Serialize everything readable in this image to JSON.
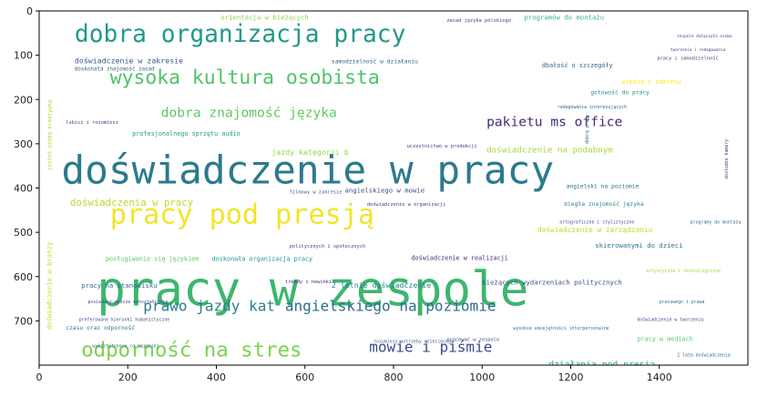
{
  "chart_data": {
    "type": "wordcloud",
    "x_ticks": [
      "0",
      "200",
      "400",
      "600",
      "800",
      "1000",
      "1200",
      "1400"
    ],
    "y_ticks": [
      "0",
      "100",
      "200",
      "300",
      "400",
      "500",
      "600",
      "700"
    ],
    "xlim": [
      0,
      1600
    ],
    "ylim": [
      800,
      0
    ],
    "words": [
      {
        "text": "pracy w zespole",
        "x": 130,
        "y": 665,
        "size": 108,
        "color": "#3cb66e"
      },
      {
        "text": "doświadczenie w pracy",
        "x": 50,
        "y": 390,
        "size": 88,
        "color": "#2c7a8c"
      },
      {
        "text": "pracy pod presją",
        "x": 160,
        "y": 480,
        "size": 62,
        "color": "#f0e52a"
      },
      {
        "text": "dobra organizacja pracy",
        "x": 80,
        "y": 70,
        "size": 54,
        "color": "#22998a"
      },
      {
        "text": "wysoka kultura osobista",
        "x": 160,
        "y": 165,
        "size": 44,
        "color": "#4ec36b"
      },
      {
        "text": "odporność na stres",
        "x": 95,
        "y": 780,
        "size": 46,
        "color": "#7cd250"
      },
      {
        "text": "prawo jazdy kat",
        "x": 235,
        "y": 678,
        "size": 33,
        "color": "#2a7f8e"
      },
      {
        "text": "angielskiego na poziomie",
        "x": 555,
        "y": 678,
        "size": 33,
        "color": "#2d6e8e"
      },
      {
        "text": "mowie i piśmie",
        "x": 745,
        "y": 770,
        "size": 33,
        "color": "#3d4c8a"
      },
      {
        "text": "pakietu ms office",
        "x": 1010,
        "y": 260,
        "size": 30,
        "color": "#482878"
      },
      {
        "text": "dobra znajomość języka",
        "x": 275,
        "y": 240,
        "size": 30,
        "color": "#5ec962"
      },
      {
        "text": "doświadczenia w pracy",
        "x": 70,
        "y": 440,
        "size": 22,
        "color": "#b5de2b"
      },
      {
        "text": "doświadczenie na podobnym",
        "x": 1010,
        "y": 320,
        "size": 19,
        "color": "#a2da37"
      },
      {
        "text": "działania pod presją",
        "x": 1150,
        "y": 805,
        "size": 20,
        "color": "#22a884"
      },
      {
        "text": "prawo jazdy kategorii",
        "x": 220,
        "y": 825,
        "size": 19,
        "color": "#c2df23"
      },
      {
        "text": "jazdy kategorii b",
        "x": 525,
        "y": 325,
        "size": 17,
        "color": "#8fd744"
      },
      {
        "text": "doświadczenie w zakresie",
        "x": 80,
        "y": 118,
        "size": 17,
        "color": "#3b528b"
      },
      {
        "text": "orientacja w bieżących",
        "x": 410,
        "y": 20,
        "size": 15,
        "color": "#86d549"
      },
      {
        "text": "programów do montażu",
        "x": 1095,
        "y": 20,
        "size": 15,
        "color": "#35b779"
      },
      {
        "text": "samodzielność w działaniu",
        "x": 660,
        "y": 118,
        "size": 13,
        "color": "#31688e"
      },
      {
        "text": "profesjonalnego sprzętu audio",
        "x": 210,
        "y": 282,
        "size": 14,
        "color": "#1f9e89"
      },
      {
        "text": "doskonała znajomość zasad",
        "x": 80,
        "y": 135,
        "size": 12,
        "color": "#31688e"
      },
      {
        "text": "angielskiego w mowie",
        "x": 690,
        "y": 410,
        "size": 15,
        "color": "#3e4a89"
      },
      {
        "text": "angielski na poziomie",
        "x": 1190,
        "y": 400,
        "size": 13,
        "color": "#2c728e"
      },
      {
        "text": "doświadczenie w zarządzaniu",
        "x": 1125,
        "y": 500,
        "size": 16,
        "color": "#b8de29"
      },
      {
        "text": "skierowanymi do dzieci",
        "x": 1255,
        "y": 535,
        "size": 15,
        "color": "#2c728e"
      },
      {
        "text": "doświadczenie w realizacji",
        "x": 840,
        "y": 562,
        "size": 14,
        "color": "#472d7b"
      },
      {
        "text": "posługiwanie się językiem",
        "x": 150,
        "y": 565,
        "size": 14,
        "color": "#5ec962"
      },
      {
        "text": "doskonała organizacja pracy",
        "x": 390,
        "y": 565,
        "size": 14,
        "color": "#21918c"
      },
      {
        "text": "bieżących wydarzeniach politycznych",
        "x": 1000,
        "y": 618,
        "size": 15,
        "color": "#3b528b"
      },
      {
        "text": "2 letnie doświadczenie",
        "x": 660,
        "y": 625,
        "size": 17,
        "color": "#26828e"
      },
      {
        "text": "pracy na stanowisku",
        "x": 95,
        "y": 625,
        "size": 15,
        "color": "#31688e"
      },
      {
        "text": "dbałość o szczegóły",
        "x": 1135,
        "y": 128,
        "size": 14,
        "color": "#31688e"
      },
      {
        "text": "wiedza z zakresu",
        "x": 1315,
        "y": 165,
        "size": 14,
        "color": "#fde725"
      },
      {
        "text": "gotowość do pracy",
        "x": 1245,
        "y": 188,
        "size": 13,
        "color": "#21918c"
      },
      {
        "text": "pracy i samodzielność",
        "x": 1395,
        "y": 110,
        "size": 11,
        "color": "#3e4989"
      },
      {
        "text": "biegła znajomość języka",
        "x": 1185,
        "y": 440,
        "size": 13,
        "color": "#238a8d"
      },
      {
        "text": "wiedza na temat",
        "x": 945,
        "y": 825,
        "size": 17,
        "color": "#35b779"
      },
      {
        "text": "dobra znajomość pakietu",
        "x": 610,
        "y": 830,
        "size": 15,
        "color": "#d2e21b"
      },
      {
        "text": "pracy w mediach",
        "x": 1350,
        "y": 745,
        "size": 14,
        "color": "#5ec962"
      },
      {
        "text": "filmowy w zakresie",
        "x": 565,
        "y": 412,
        "size": 11,
        "color": "#355e8d"
      },
      {
        "text": "politycznych i społecznych",
        "x": 565,
        "y": 535,
        "size": 11,
        "color": "#443983"
      },
      {
        "text": "trendy i nowinki",
        "x": 555,
        "y": 615,
        "size": 11,
        "color": "#482475"
      },
      {
        "text": "czasu oraz odporność",
        "x": 60,
        "y": 720,
        "size": 13,
        "color": "#2a788e"
      },
      {
        "text": "lubisz i rozumiesz",
        "x": 60,
        "y": 255,
        "size": 11,
        "color": "#404688"
      },
      {
        "text": "doświadczenie w organizacji",
        "x": 740,
        "y": 440,
        "size": 11,
        "color": "#443a83"
      },
      {
        "text": "pracować w zespole",
        "x": 920,
        "y": 745,
        "size": 11,
        "color": "#3e4989"
      },
      {
        "text": "rozumiesz potrzeby dziecięcego",
        "x": 755,
        "y": 750,
        "size": 10,
        "color": "#31688e"
      },
      {
        "text": "uczestnictwo w produkcji",
        "x": 830,
        "y": 308,
        "size": 11,
        "color": "#46327e"
      },
      {
        "text": "jesteś osobą kreatywną",
        "x": 28,
        "y": 360,
        "size": 12,
        "color": "#a5db36",
        "rotate": true
      },
      {
        "text": "doświadczenie w branży",
        "x": 28,
        "y": 720,
        "size": 15,
        "color": "#bddf26",
        "rotate": true
      },
      {
        "text": "dobrą pracy",
        "x": 1240,
        "y": 300,
        "size": 10,
        "color": "#31688e",
        "rotate": true
      },
      {
        "text": "obsłudze kamery",
        "x": 1555,
        "y": 380,
        "size": 10,
        "color": "#404688",
        "rotate": true
      },
      {
        "text": "preferowane kierunki humanistyczne",
        "x": 90,
        "y": 700,
        "size": 10,
        "color": "#3b528b"
      },
      {
        "text": "posiadasz wyższe wykształcenie",
        "x": 110,
        "y": 660,
        "size": 10,
        "color": "#3e4989"
      },
      {
        "text": "wykształcenie co najmniej",
        "x": 120,
        "y": 760,
        "size": 10,
        "color": "#31688e"
      },
      {
        "text": "organizacja pracy własnej",
        "x": 80,
        "y": 840,
        "size": 10,
        "color": "#7ad151"
      },
      {
        "text": "prasowego i prawa",
        "x": 1400,
        "y": 660,
        "size": 10,
        "color": "#2c728e"
      },
      {
        "text": "dobra organizacja pracy",
        "x": 1345,
        "y": 805,
        "size": 11,
        "color": "#35b779"
      },
      {
        "text": "2 lata doświadczenia",
        "x": 1440,
        "y": 780,
        "size": 10,
        "color": "#31688e"
      },
      {
        "text": "znajomość języka angielskiego",
        "x": 1425,
        "y": 825,
        "size": 9,
        "color": "#3e4989"
      },
      {
        "text": "zasad języka polskiego",
        "x": 920,
        "y": 25,
        "size": 11,
        "color": "#433e85"
      },
      {
        "text": "redagowania interesujących",
        "x": 1170,
        "y": 220,
        "size": 10,
        "color": "#31688e"
      },
      {
        "text": "artystyczne i technologiczne",
        "x": 1370,
        "y": 590,
        "size": 10,
        "color": "#a0da39"
      },
      {
        "text": "doświadczenie w tworzeniu",
        "x": 1350,
        "y": 700,
        "size": 10,
        "color": "#3e4989"
      },
      {
        "text": "wysokie umiejętności interpersonalne",
        "x": 1070,
        "y": 720,
        "size": 10,
        "color": "#2d708e"
      },
      {
        "text": "programy do montażu",
        "x": 1470,
        "y": 480,
        "size": 10,
        "color": "#31688e"
      },
      {
        "text": "ortograficzne i stylistyczne",
        "x": 1175,
        "y": 480,
        "size": 10,
        "color": "#3b528b"
      },
      {
        "text": "zespole dołączyła osoba",
        "x": 1440,
        "y": 60,
        "size": 9,
        "color": "#3e4989"
      },
      {
        "text": "tworzenia i redagowania",
        "x": 1425,
        "y": 90,
        "size": 9,
        "color": "#433e85"
      }
    ]
  }
}
